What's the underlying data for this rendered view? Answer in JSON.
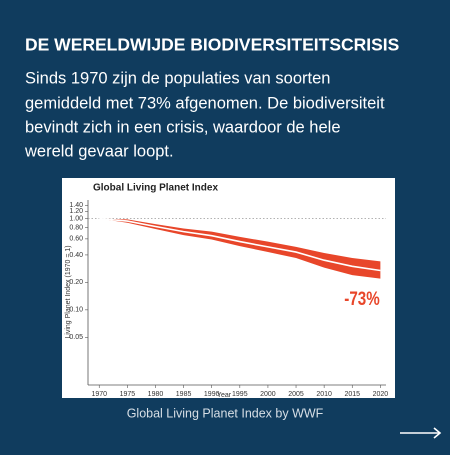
{
  "header": {
    "title": "DE WERELDWIJDE BIODIVERSITEITSCRISIS"
  },
  "intro": [
    "Sinds 1970 zijn de populaties van soorten",
    "gemiddeld met 73% afgenomen. De biodiversiteit",
    "bevindt zich in een crisis, waardoor de hele",
    "wereld gevaar loopt."
  ],
  "caption": "Global Living Planet Index by WWF",
  "chart_data": {
    "type": "band-line",
    "title": "Global Living Planet Index",
    "x_label": "Year",
    "y_label": "Living Planet Index (1970 = 1)",
    "x": [
      1970,
      1975,
      1980,
      1985,
      1990,
      1995,
      2000,
      2005,
      2010,
      2015,
      2020
    ],
    "series": [
      {
        "name": "Global Living Planet Index",
        "color": "#e8462a",
        "line_color": "#ffffff",
        "values": [
          1.0,
          0.94,
          0.82,
          0.72,
          0.65,
          0.56,
          0.49,
          0.43,
          0.35,
          0.3,
          0.27
        ],
        "lower": [
          1.0,
          0.9,
          0.77,
          0.66,
          0.59,
          0.5,
          0.43,
          0.37,
          0.29,
          0.24,
          0.22
        ],
        "upper": [
          1.0,
          0.98,
          0.87,
          0.78,
          0.72,
          0.63,
          0.56,
          0.49,
          0.42,
          0.37,
          0.34
        ]
      }
    ],
    "annotation": "-73%",
    "annotation_color": "#e8462a",
    "reference_line": 1,
    "log_y": true,
    "xlim": [
      1968,
      2021
    ],
    "xticks": [
      1970,
      1975,
      1980,
      1985,
      1990,
      1995,
      2000,
      2005,
      2010,
      2015,
      2020
    ],
    "ylim": [
      0.015,
      1.6
    ],
    "yticks": [
      0.05,
      {
        "value": 0.1,
        "label": "0.10"
      },
      {
        "value": 0.2,
        "label": "0.20"
      },
      {
        "value": 0.4,
        "label": "0.40"
      },
      {
        "value": 0.6,
        "label": "0.60"
      },
      {
        "value": 0.8,
        "label": "0.80"
      },
      {
        "value": 1,
        "label": "1.00"
      },
      {
        "value": 1.2,
        "label": "1.20"
      },
      {
        "value": 1.4,
        "label": "1.40"
      }
    ]
  }
}
